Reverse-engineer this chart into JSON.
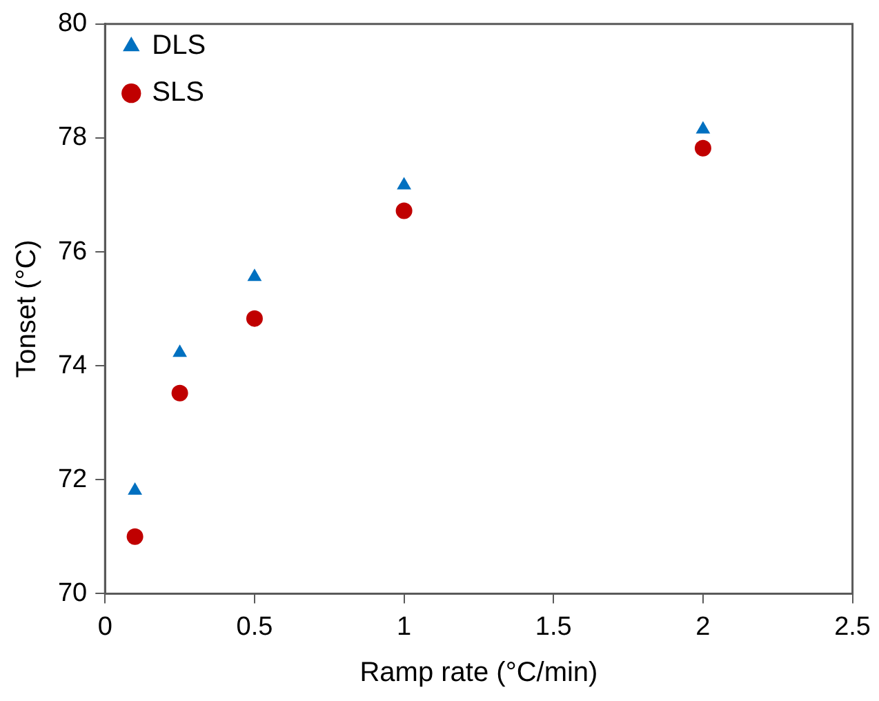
{
  "chart_data": {
    "type": "scatter",
    "xlabel": "Ramp rate (°C/min)",
    "ylabel": "Tonset (°C)",
    "xlim": [
      0,
      2.5
    ],
    "xticks": [
      0,
      0.5,
      1,
      1.5,
      2,
      2.5
    ],
    "ylim": [
      70,
      80
    ],
    "yticks": [
      70,
      72,
      74,
      76,
      78,
      80
    ],
    "grid": false,
    "legend": "top left",
    "series": [
      {
        "name": "DLS",
        "color": "#0070c0",
        "marker": "triangle",
        "x": [
          0.1,
          0.25,
          0.5,
          1,
          2
        ],
        "values": [
          71.81,
          74.23,
          75.56,
          77.17,
          78.15
        ]
      },
      {
        "name": "SLS",
        "color": "#c00000",
        "marker": "circle",
        "x": [
          0.1,
          0.25,
          0.5,
          1,
          2
        ],
        "values": [
          71.0,
          73.52,
          74.83,
          76.72,
          77.82
        ]
      }
    ]
  }
}
